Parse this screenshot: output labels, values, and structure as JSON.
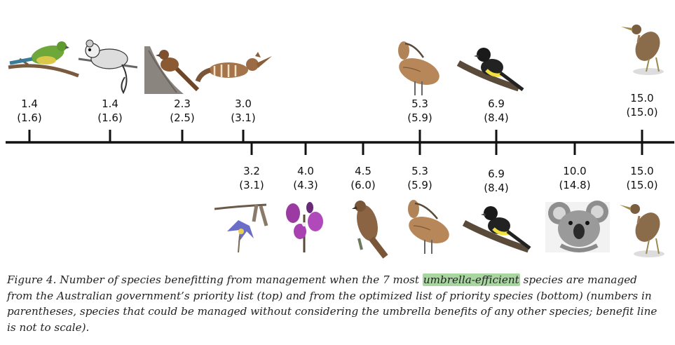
{
  "figure": {
    "top_species": [
      {
        "value": "1.4",
        "alt": "(1.6)",
        "icon": "parrot-icon"
      },
      {
        "value": "1.4",
        "alt": "(1.6)",
        "icon": "possum-icon"
      },
      {
        "value": "2.3",
        "alt": "(2.5)",
        "icon": "bristlebird-icon"
      },
      {
        "value": "3.0",
        "alt": "(3.1)",
        "icon": "numbat-icon"
      },
      {
        "value": "5.3",
        "alt": "(5.9)",
        "icon": "curlew-icon"
      },
      {
        "value": "6.9",
        "alt": "(8.4)",
        "icon": "honeyeater-icon"
      },
      {
        "value": "15.0",
        "alt": "(15.0)",
        "icon": "bittern-icon"
      }
    ],
    "bottom_species": [
      {
        "value": "3.2",
        "alt": "(3.1)",
        "icon": "blue-orchid-icon"
      },
      {
        "value": "4.0",
        "alt": "(4.3)",
        "icon": "purple-flower-icon"
      },
      {
        "value": "4.5",
        "alt": "(6.0)",
        "icon": "hawk-icon"
      },
      {
        "value": "5.3",
        "alt": "(5.9)",
        "icon": "curlew-icon"
      },
      {
        "value": "6.9",
        "alt": "(8.4)",
        "icon": "honeyeater-icon"
      },
      {
        "value": "10.0",
        "alt": "(14.8)",
        "icon": "koala-icon"
      },
      {
        "value": "15.0",
        "alt": "(15.0)",
        "icon": "bittern-icon"
      }
    ]
  },
  "caption": {
    "prefix": "Figure 4.  Number of species benefitting from management when the 7 most ",
    "highlight": "umbrella-efficient",
    "suffix": " species are managed from the Australian government’s priority list (top) and from the optimized list of priority species (bottom) (numbers in parentheses, species that could be managed without considering the umbrella benefits of any other species; benefit line is not to scale)."
  },
  "colors": {
    "highlight": "#a8d5a0",
    "axis": "#111111"
  }
}
